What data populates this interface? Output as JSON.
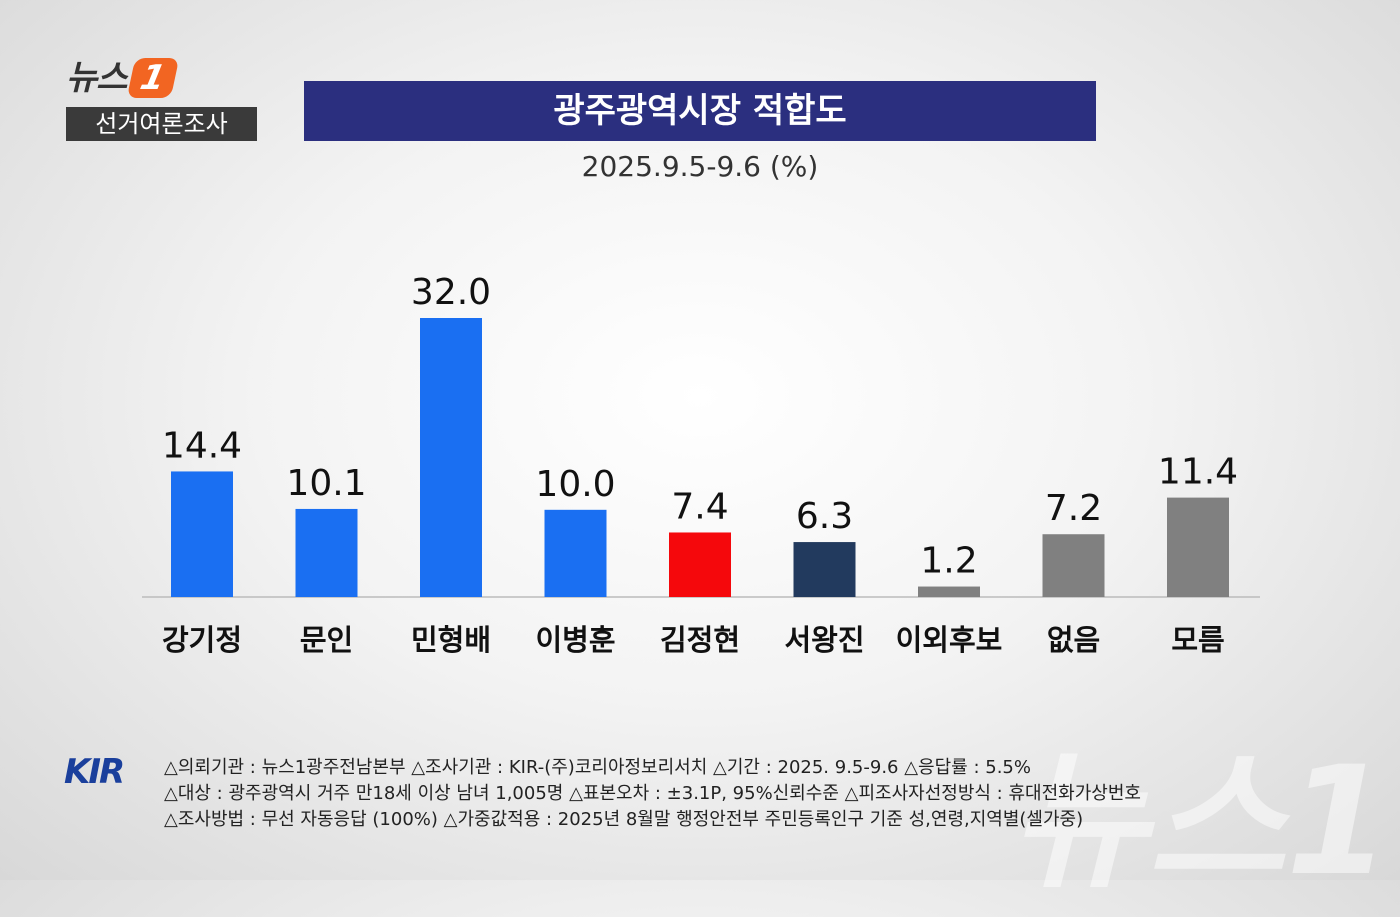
{
  "header": {
    "logo_text": "뉴스",
    "logo_number": "1",
    "section_label": "선거여론조사",
    "title": "광주광역시장 적합도",
    "subtitle": "2025.9.5-9.6 (%)"
  },
  "chart_data": {
    "type": "bar",
    "title": "광주광역시장 적합도",
    "subtitle": "2025.9.5-9.6 (%)",
    "categories": [
      "강기정",
      "문인",
      "민형배",
      "이병훈",
      "김정현",
      "서왕진",
      "이외후보",
      "없음",
      "모름"
    ],
    "values": [
      14.4,
      10.1,
      32.0,
      10.0,
      7.4,
      6.3,
      1.2,
      7.2,
      11.4
    ],
    "value_labels": [
      "14.4",
      "10.1",
      "32.0",
      "10.0",
      "7.4",
      "6.3",
      "1.2",
      "7.2",
      "11.4"
    ],
    "colors": [
      "#1a6ff2",
      "#1a6ff2",
      "#1a6ff2",
      "#1a6ff2",
      "#f5080c",
      "#223a5e",
      "#808080",
      "#808080",
      "#808080"
    ],
    "ylim": [
      0,
      32
    ],
    "grid": false,
    "xlabel": "",
    "ylabel": ""
  },
  "footer": {
    "logo": "KIR",
    "lines": [
      "△의뢰기관 : 뉴스1광주전남본부 △조사기관 : KIR-(주)코리아정보리서치 △기간 : 2025. 9.5-9.6  △응답률 : 5.5%",
      "△대상 : 광주광역시 거주 만18세 이상 남녀 1,005명  △표본오차 : ±3.1P, 95%신뢰수준  △피조사자선정방식 : 휴대전화가상번호",
      "△조사방법 : 무선 자동응답 (100%) △가중값적용 : 2025년 8월말 행정안전부 주민등록인구 기준 성,연령,지역별(셀가중)"
    ],
    "watermark": "뉴스1"
  }
}
